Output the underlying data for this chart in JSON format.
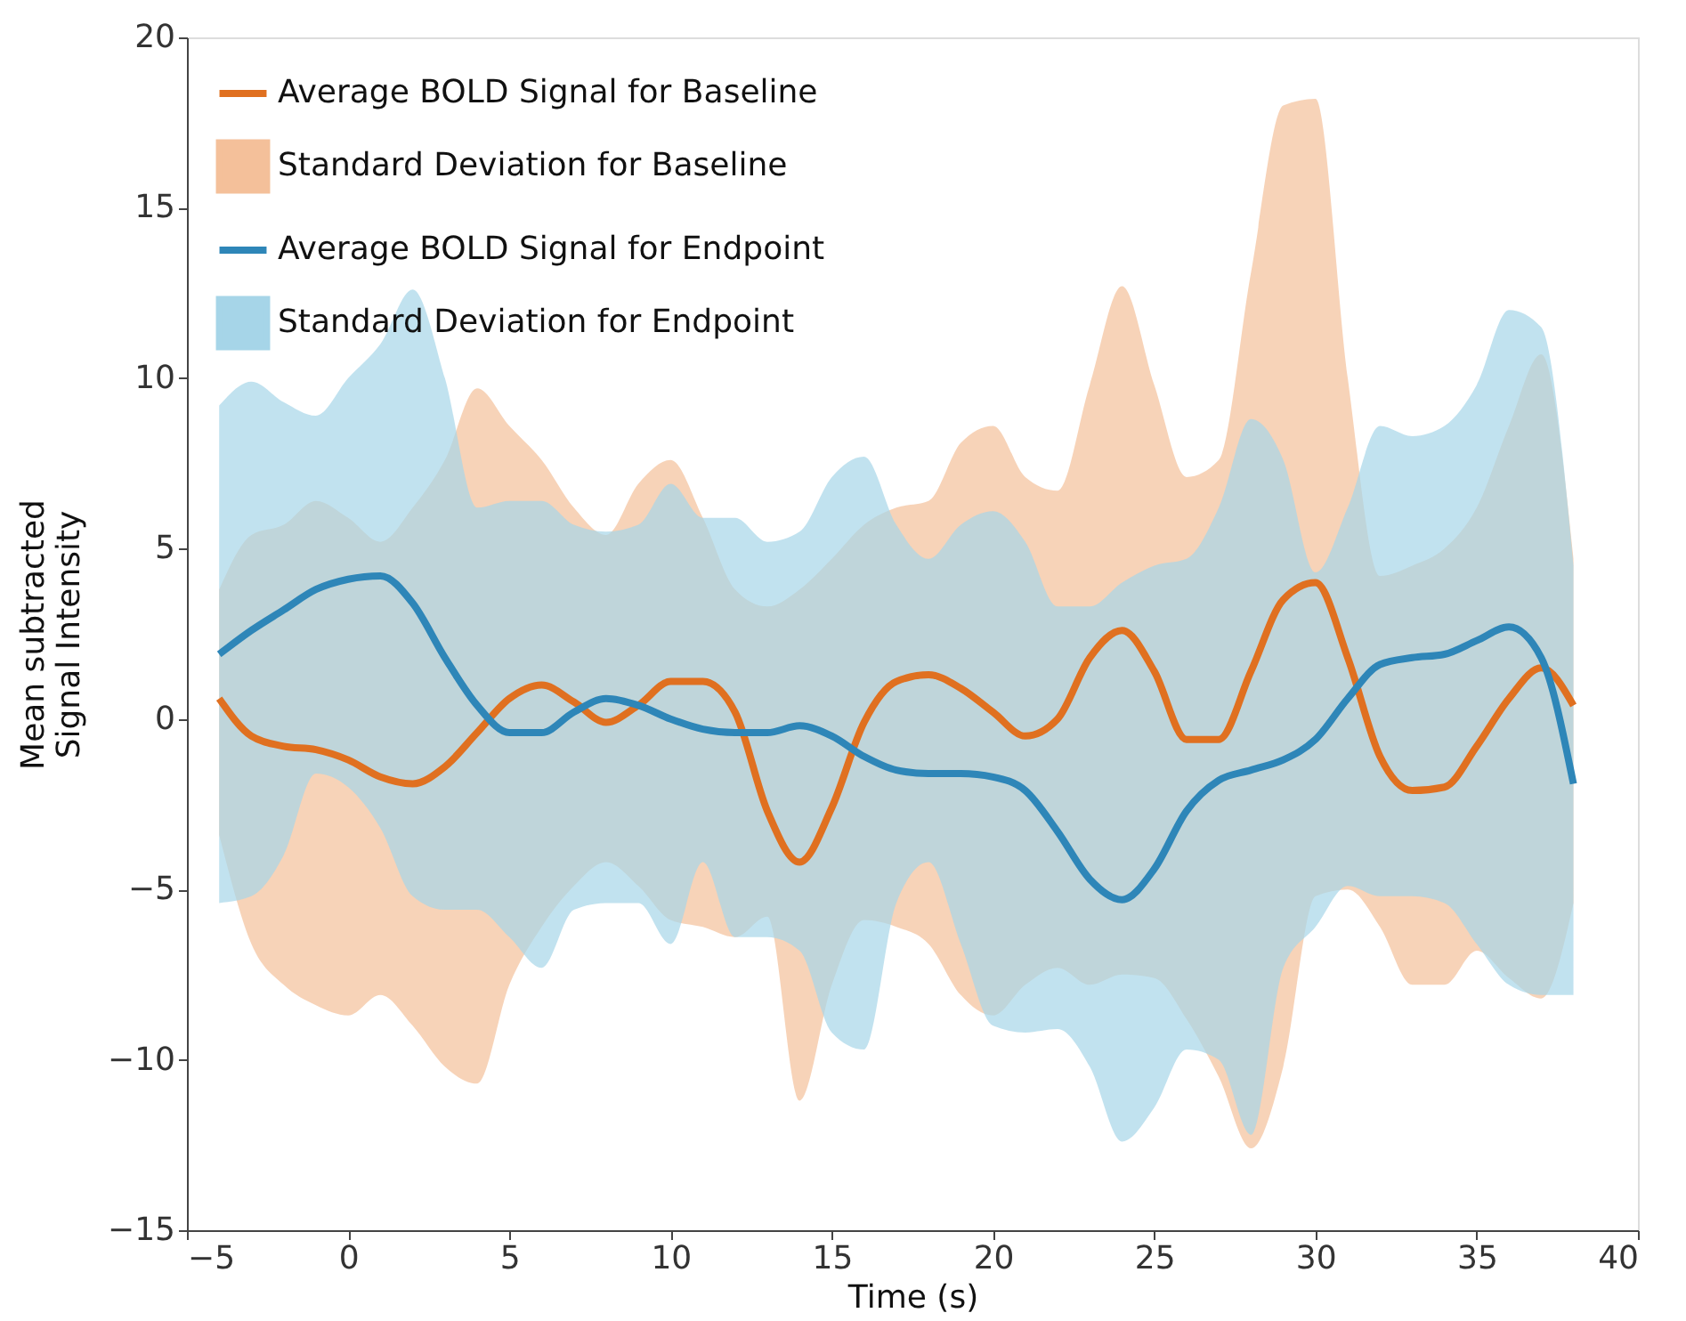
{
  "chart_data": {
    "type": "line",
    "xlabel": "Time (s)",
    "ylabel": "Mean subtracted\nSignal Intensity",
    "x": [
      -4,
      -3,
      -2,
      -1,
      0,
      1,
      2,
      3,
      4,
      5,
      6,
      7,
      8,
      9,
      10,
      11,
      12,
      13,
      14,
      15,
      16,
      17,
      18,
      19,
      20,
      21,
      22,
      23,
      24,
      25,
      26,
      27,
      28,
      29,
      30,
      31,
      32,
      33,
      34,
      35,
      36,
      37,
      38
    ],
    "series": [
      {
        "name": "Average BOLD Signal for Baseline",
        "color": "#e07020",
        "values": [
          0.6,
          -0.5,
          -0.8,
          -0.9,
          -1.2,
          -1.7,
          -1.9,
          -1.4,
          -0.4,
          0.6,
          1.0,
          0.5,
          -0.1,
          0.4,
          1.1,
          1.1,
          0.2,
          -2.7,
          -4.2,
          -2.6,
          -0.1,
          1.1,
          1.3,
          0.9,
          0.2,
          -0.5,
          0.0,
          1.8,
          2.6,
          1.4,
          -0.6,
          -0.6,
          1.4,
          3.5,
          4.0,
          1.8,
          -1.1,
          -2.1,
          -2.0,
          -0.8,
          0.6,
          1.5,
          0.4
        ]
      },
      {
        "name": "Standard Deviation for Baseline",
        "type": "area",
        "color": "#f4c09a",
        "values": [
          null,
          null,
          null,
          null,
          null,
          null,
          null,
          null,
          null,
          null,
          null,
          null,
          null,
          null,
          null,
          null,
          null,
          null,
          null,
          null,
          null,
          null,
          null,
          null,
          null,
          null,
          null,
          null,
          null,
          null,
          null,
          null,
          null,
          null,
          null,
          null,
          null,
          null,
          null,
          null,
          null,
          null,
          null
        ],
        "lower": [
          -3.4,
          -6.6,
          -7.8,
          -8.4,
          -8.7,
          -8.1,
          -9.0,
          -10.2,
          -10.7,
          -7.8,
          -6.1,
          -4.9,
          -4.2,
          -4.9,
          -5.9,
          -6.1,
          -6.4,
          -5.8,
          -11.2,
          -7.8,
          -5.9,
          -6.1,
          -6.6,
          -8.1,
          -8.7,
          -7.8,
          -7.3,
          -7.8,
          -7.5,
          -7.6,
          -8.8,
          -10.5,
          -12.6,
          -10.2,
          -5.2,
          -5.0,
          -6.1,
          -7.8,
          -7.8,
          -6.8,
          -7.6,
          -8.2,
          -5.4
        ],
        "upper": [
          3.8,
          5.4,
          5.7,
          6.4,
          5.9,
          5.2,
          6.2,
          7.6,
          9.7,
          8.6,
          7.6,
          6.2,
          5.4,
          6.9,
          7.6,
          5.9,
          3.8,
          3.3,
          3.8,
          4.7,
          5.7,
          6.2,
          6.4,
          8.1,
          8.6,
          7.1,
          6.7,
          9.8,
          12.7,
          9.8,
          7.1,
          7.6,
          13.1,
          18.0,
          18.2,
          10.0,
          4.2,
          4.5,
          5.0,
          6.2,
          8.6,
          10.7,
          4.7
        ]
      },
      {
        "name": "Average BOLD Signal for Endpoint",
        "color": "#2e86b8",
        "values": [
          1.9,
          2.6,
          3.2,
          3.8,
          4.1,
          4.2,
          3.4,
          1.8,
          0.4,
          -0.4,
          -0.4,
          0.2,
          0.6,
          0.4,
          0.0,
          -0.3,
          -0.4,
          -0.4,
          -0.2,
          -0.5,
          -1.1,
          -1.5,
          -1.6,
          -1.6,
          -1.7,
          -2.1,
          -3.3,
          -4.7,
          -5.3,
          -4.4,
          -2.7,
          -1.8,
          -1.5,
          -1.2,
          -0.6,
          0.6,
          1.6,
          1.8,
          1.9,
          2.3,
          2.7,
          1.8,
          -1.9
        ]
      },
      {
        "name": "Standard Deviation for Endpoint",
        "type": "area",
        "color": "#a6d5e8",
        "values": [
          null,
          null,
          null,
          null,
          null,
          null,
          null,
          null,
          null,
          null,
          null,
          null,
          null,
          null,
          null,
          null,
          null,
          null,
          null,
          null,
          null,
          null,
          null,
          null,
          null,
          null,
          null,
          null,
          null,
          null,
          null,
          null,
          null,
          null,
          null,
          null,
          null,
          null,
          null,
          null,
          null,
          null,
          null
        ],
        "lower": [
          -5.4,
          -5.2,
          -4.0,
          -1.6,
          -2.0,
          -3.2,
          -5.2,
          -5.6,
          -5.6,
          -6.4,
          -7.3,
          -5.6,
          -5.4,
          -5.4,
          -6.6,
          -4.2,
          -6.4,
          -6.4,
          -6.8,
          -9.2,
          -9.7,
          -5.4,
          -4.2,
          -6.6,
          -9.0,
          -9.2,
          -9.1,
          -10.2,
          -12.4,
          -11.4,
          -9.7,
          -10.0,
          -12.2,
          -7.3,
          -6.1,
          -4.9,
          -5.2,
          -5.2,
          -5.4,
          -6.6,
          -7.8,
          -8.1,
          -8.1
        ],
        "upper": [
          9.2,
          9.9,
          9.3,
          8.9,
          10.0,
          11.0,
          12.6,
          10.0,
          6.2,
          6.4,
          6.4,
          5.7,
          5.5,
          5.7,
          6.9,
          5.9,
          5.9,
          5.2,
          5.5,
          7.1,
          7.7,
          5.7,
          4.7,
          5.7,
          6.1,
          5.2,
          3.3,
          3.3,
          4.0,
          4.5,
          4.7,
          6.2,
          8.8,
          7.6,
          4.3,
          6.2,
          8.6,
          8.3,
          8.6,
          9.8,
          12.0,
          11.5,
          4.5
        ]
      }
    ],
    "xlim": [
      -5,
      40
    ],
    "xticks": [
      -5,
      0,
      5,
      10,
      15,
      20,
      25,
      30,
      35,
      40
    ],
    "ylim": [
      -15,
      20
    ],
    "yticks": [
      -15,
      -10,
      -5,
      0,
      5,
      10,
      15,
      20
    ],
    "grid": false,
    "legend": "top left",
    "line_style": "solid",
    "marker": "none"
  }
}
